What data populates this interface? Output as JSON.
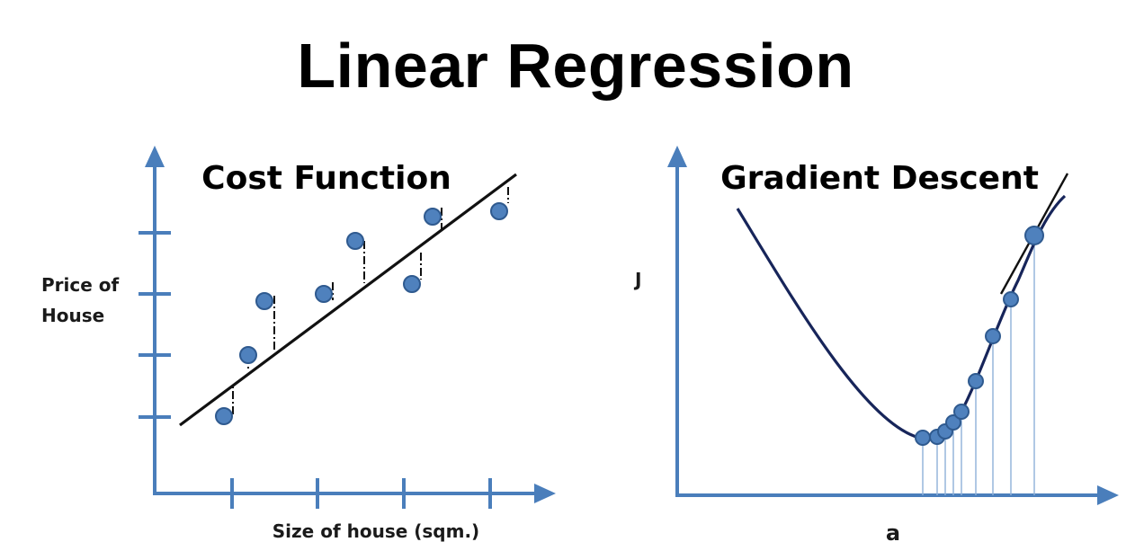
{
  "title": "Linear Regression",
  "panels": {
    "cost_function": {
      "title": "Cost Function",
      "ylabel_line1": "Price of",
      "ylabel_line2": "House",
      "xlabel": "Size of house (sqm.)"
    },
    "gradient_descent": {
      "title": "Gradient Descent",
      "ylabel": "J",
      "xlabel": "a"
    }
  },
  "colors": {
    "axis": "#4a7ebb",
    "point_fill": "#4f81bd",
    "point_stroke": "#2f5a8f",
    "regression_line": "#111111",
    "residual": "#111111",
    "curve": "#17255a",
    "drop_line": "#8fb0d8"
  }
}
